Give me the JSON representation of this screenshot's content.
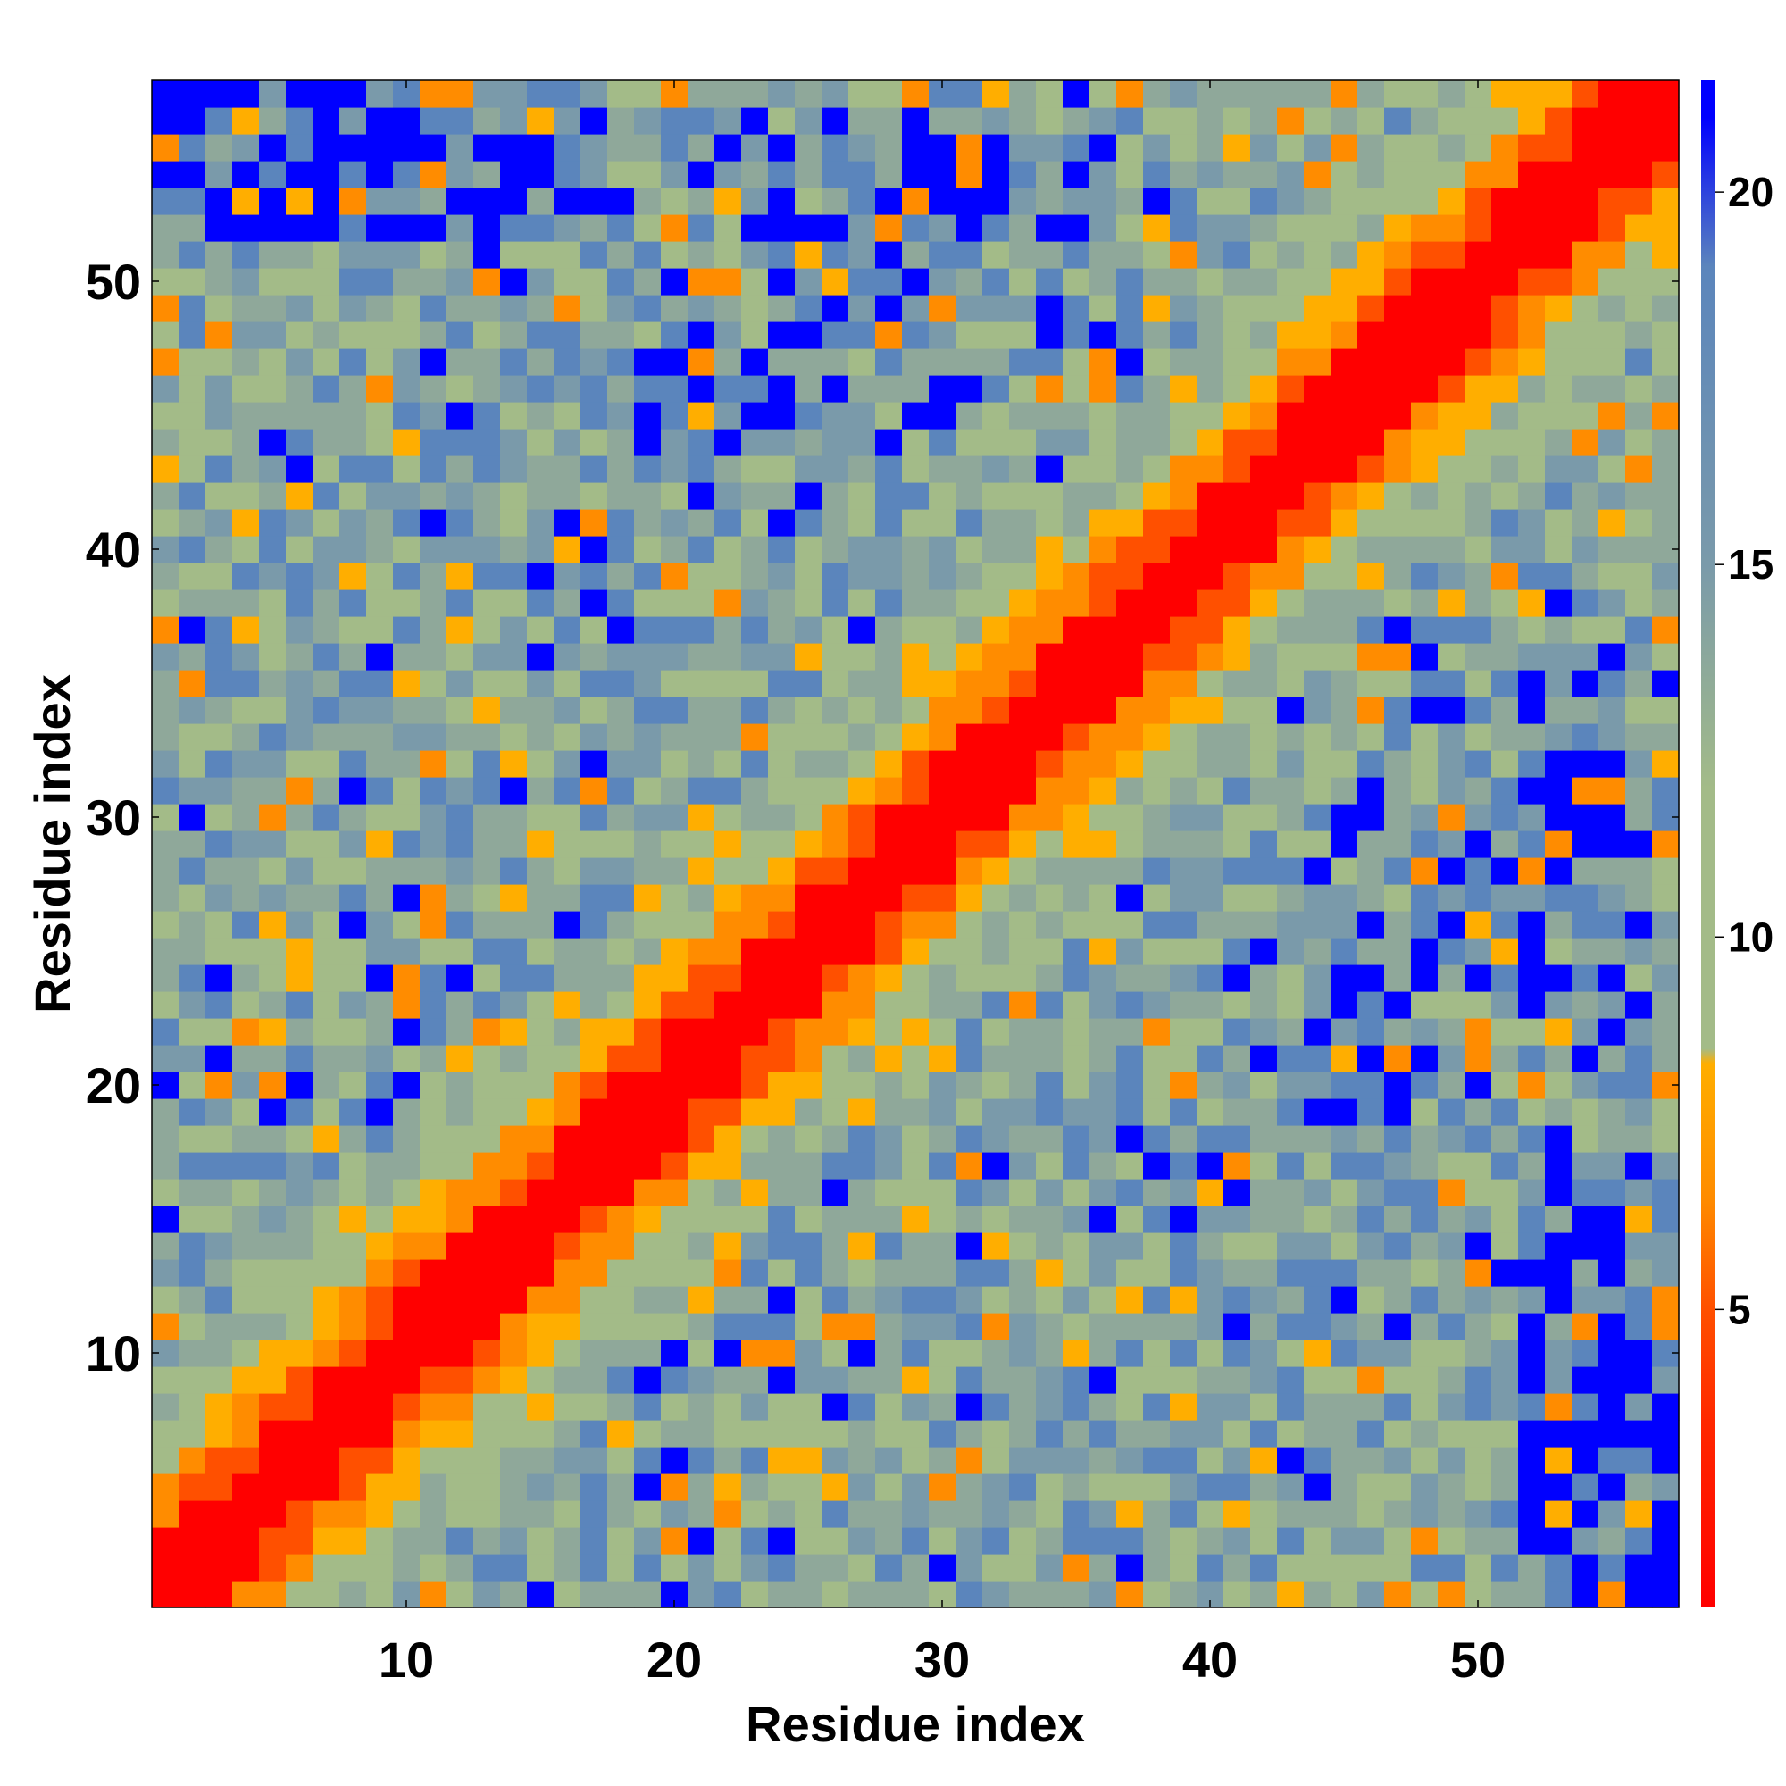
{
  "chart_data": {
    "type": "heatmap",
    "title": "",
    "xlabel": "Residue index",
    "ylabel": "Residue index",
    "n": 57,
    "xlim": [
      1,
      57
    ],
    "ylim": [
      1,
      57
    ],
    "x_ticks": [
      10,
      20,
      30,
      40,
      50
    ],
    "y_ticks": [
      10,
      20,
      30,
      40,
      50
    ],
    "colorbar_ticks": [
      5,
      10,
      15,
      20
    ],
    "colorbar_range": [
      1,
      21.5
    ],
    "colors": {
      "d0": "#ff0000",
      "d1": "#ff5000",
      "d2": "#ff8c00",
      "d3": "#ffae00",
      "d4": "#a3bb88",
      "d5": "#8fa89a",
      "d6": "#7a9aaa",
      "d7": "#5b85bc",
      "far": "#0000ff"
    },
    "colorbar_stops": [
      {
        "value": 1,
        "color": "#ff0000"
      },
      {
        "value": 3.5,
        "color": "#ff2800"
      },
      {
        "value": 5,
        "color": "#ff5000"
      },
      {
        "value": 6.5,
        "color": "#ff8c00"
      },
      {
        "value": 8.3,
        "color": "#ffae00"
      },
      {
        "value": 8.5,
        "color": "#a3bb88"
      },
      {
        "value": 12,
        "color": "#a3bb88"
      },
      {
        "value": 15,
        "color": "#7a9aaa"
      },
      {
        "value": 19,
        "color": "#5b85bc"
      },
      {
        "value": 21,
        "color": "#0000ff"
      }
    ]
  }
}
